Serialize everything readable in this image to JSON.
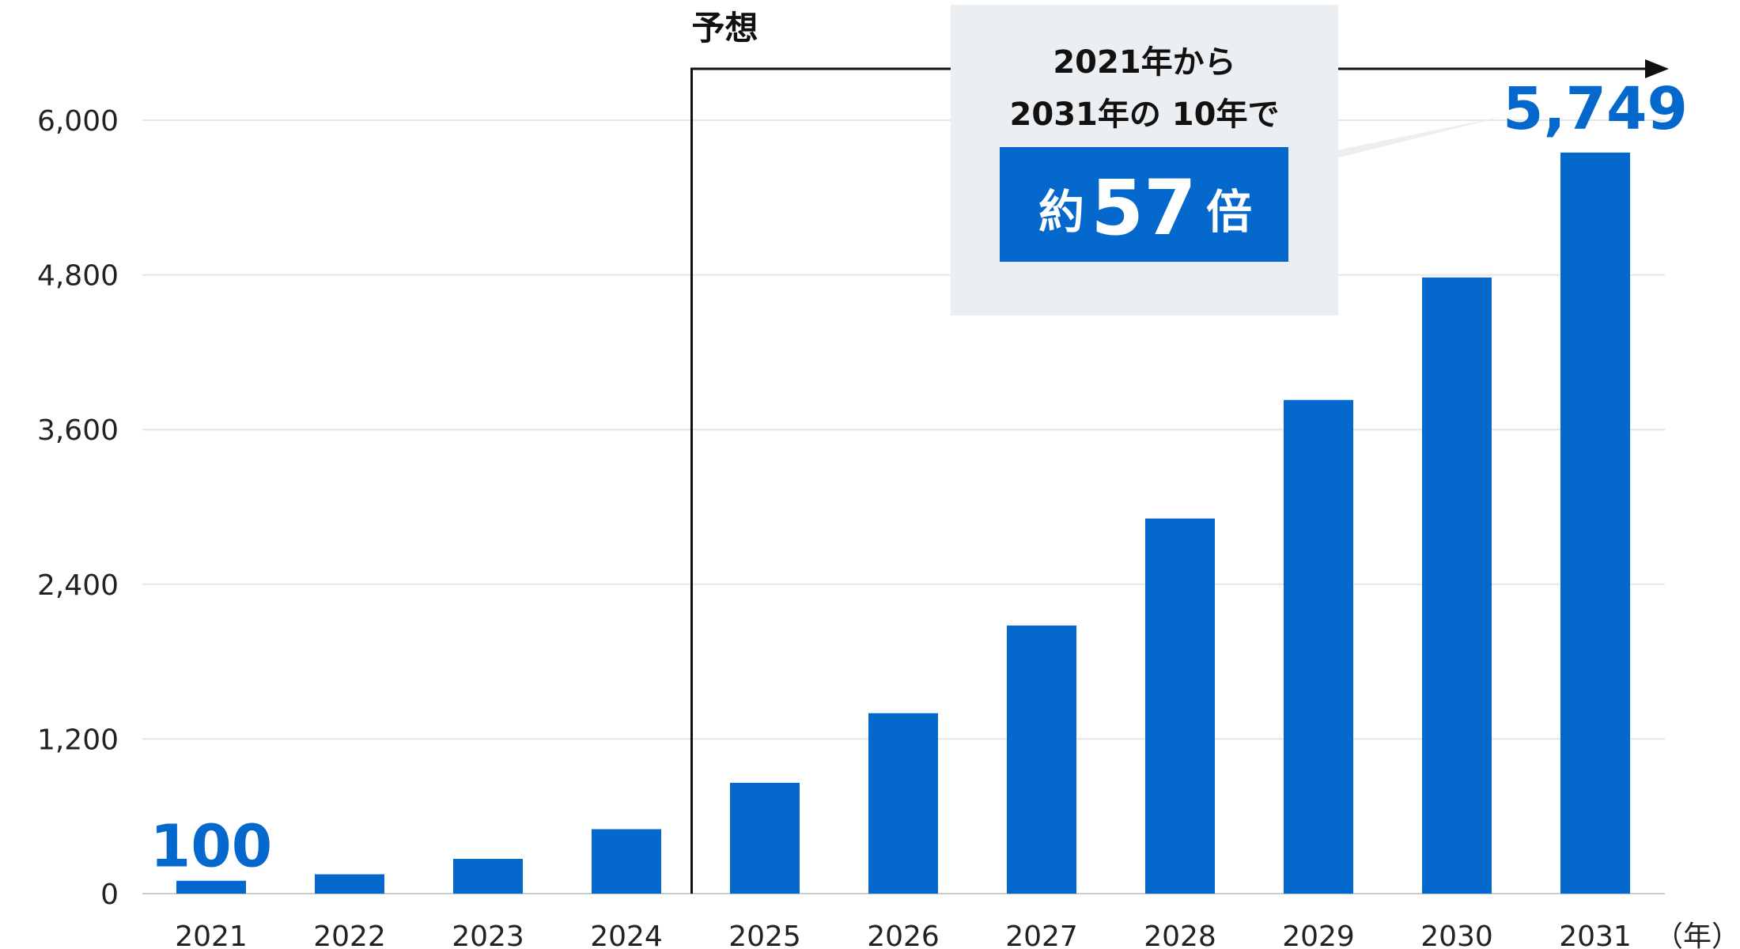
{
  "chart_data": {
    "type": "bar",
    "categories": [
      "2021",
      "2022",
      "2023",
      "2024",
      "2025",
      "2026",
      "2027",
      "2028",
      "2029",
      "2030",
      "2031"
    ],
    "values": [
      100,
      150,
      270,
      500,
      860,
      1400,
      2080,
      2910,
      3830,
      4780,
      5749
    ],
    "xunit": "（年）",
    "ylim": [
      0,
      6000
    ],
    "yticks": [
      "0",
      "1,200",
      "2,400",
      "3,600",
      "4,800",
      "6,000"
    ],
    "ytick_values": [
      0,
      1200,
      2400,
      3600,
      4800,
      6000
    ],
    "grid": true,
    "annotations": {
      "first_value_label": "100",
      "last_value_label": "5,749",
      "forecast_label": "予想",
      "forecast_start_category": "2025",
      "callout_line1": "2021年から",
      "callout_line2": "2031年の 10年で",
      "multiplier_prefix": "約",
      "multiplier_value": "57",
      "multiplier_suffix": "倍"
    },
    "colors": {
      "bar": "#0568cd",
      "accent_text": "#0568cd",
      "callout_bg": "#eceff2",
      "grid": "#e6e6e6"
    }
  }
}
